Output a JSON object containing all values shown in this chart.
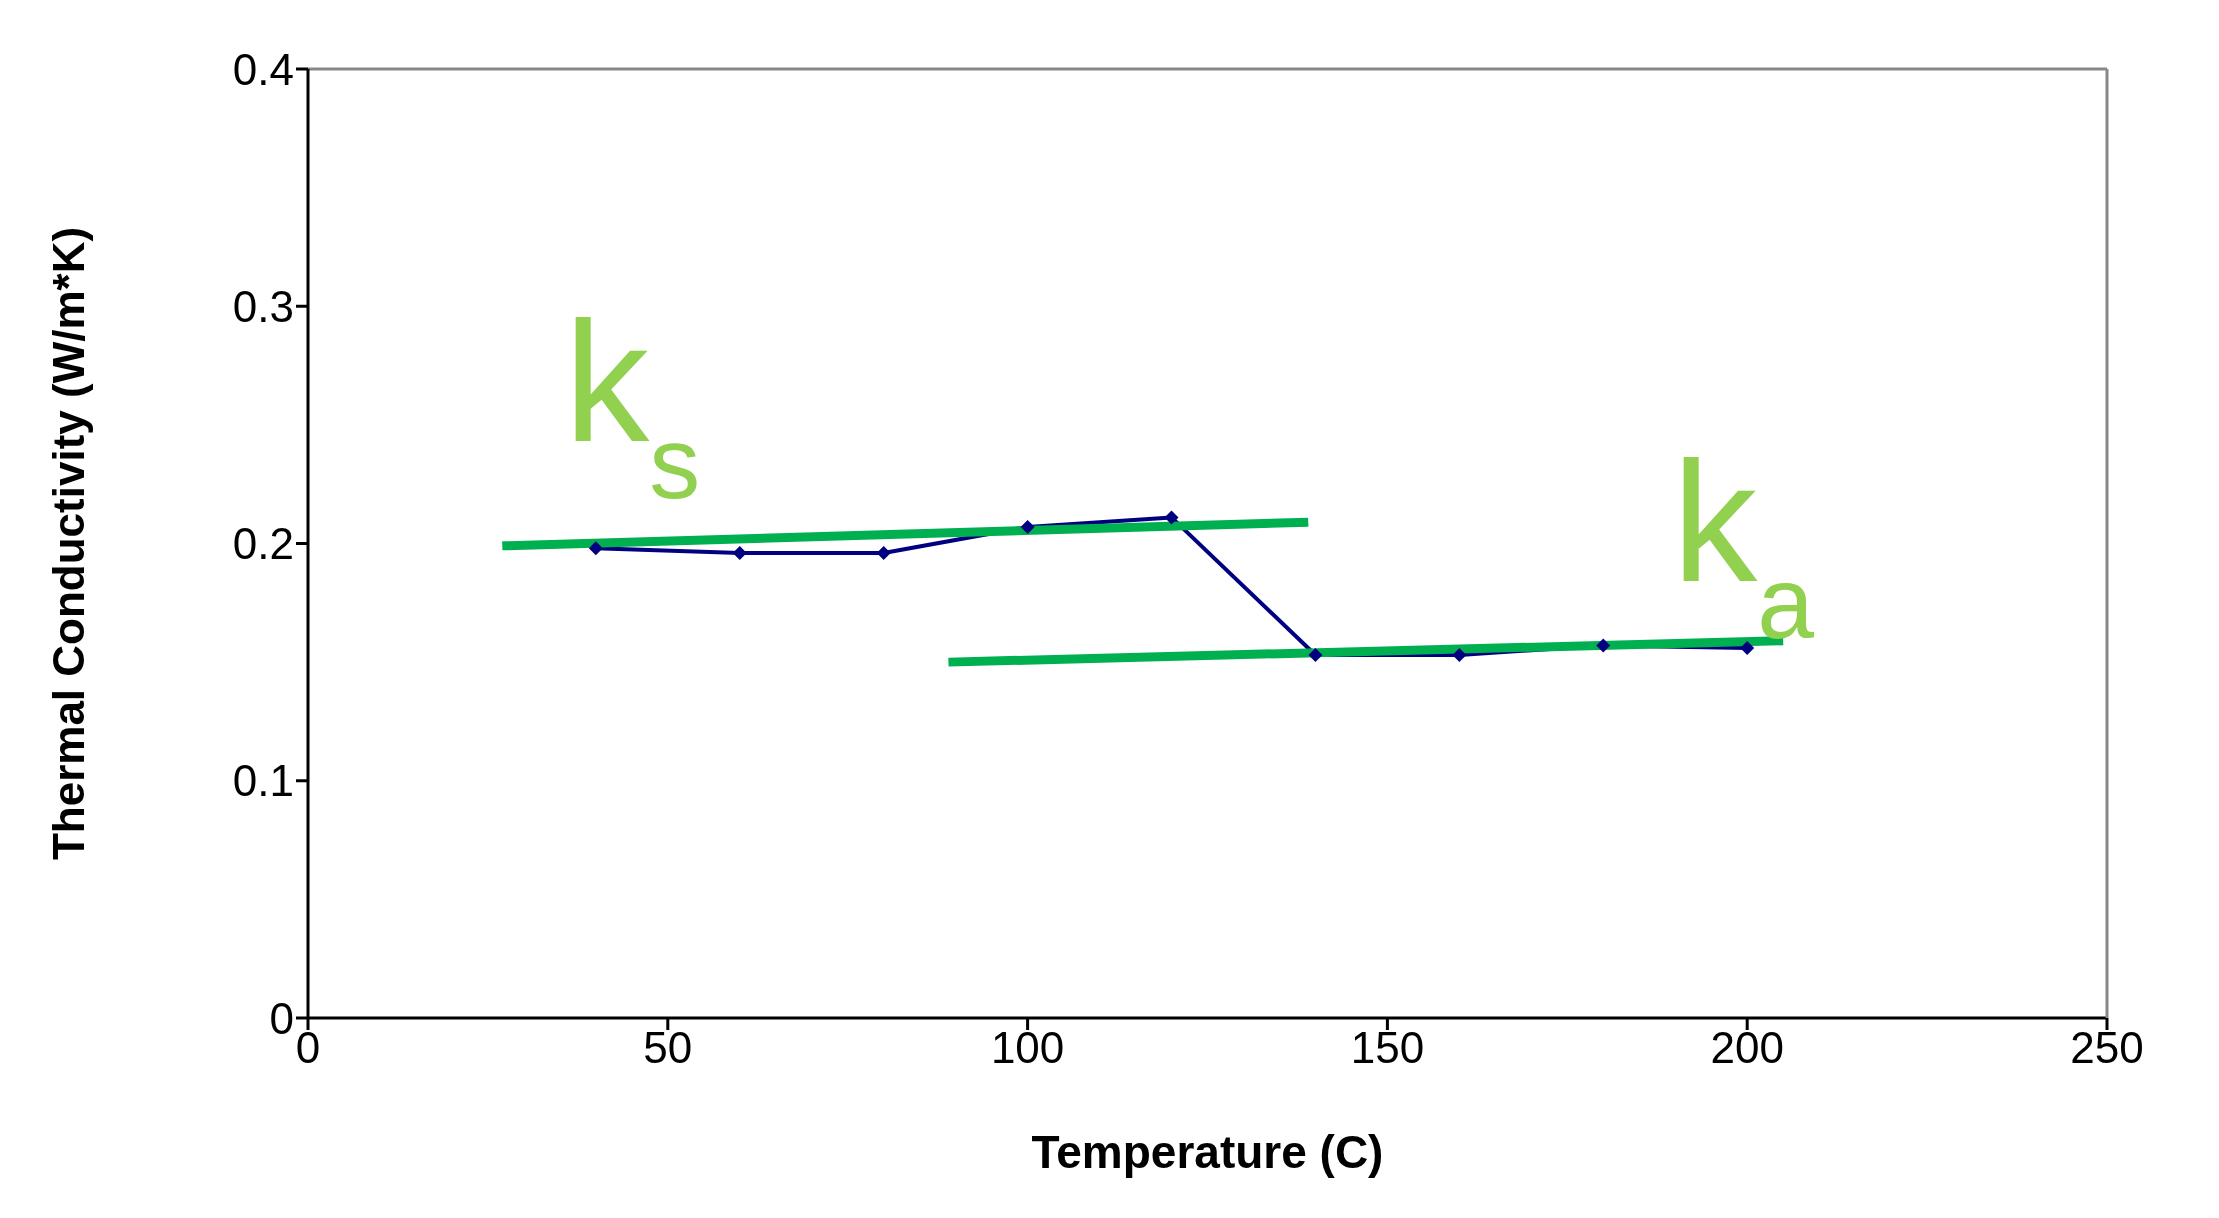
{
  "chart_data": {
    "type": "line",
    "xlabel": "Temperature (C)",
    "ylabel": "Thermal Conductivity (W/m*K)",
    "xlim": [
      0,
      250
    ],
    "xticks": [
      0,
      50,
      100,
      150,
      200,
      250
    ],
    "ylim": [
      0,
      0.4
    ],
    "yticks": [
      0,
      0.1,
      0.2,
      0.3,
      0.4
    ],
    "grid": false,
    "legend": false,
    "series": [
      {
        "color": "#000080",
        "marker": "diamond",
        "x": [
          40,
          60,
          80,
          100,
          120,
          140,
          160,
          180,
          200
        ],
        "values": [
          0.198,
          0.196,
          0.196,
          0.207,
          0.211,
          0.153,
          0.153,
          0.157,
          0.156
        ]
      },
      {
        "name": "k$_{s}$",
        "color": "#00b050",
        "marker": "none",
        "x": [
          27,
          139
        ],
        "values": [
          0.199,
          0.209
        ]
      },
      {
        "name": "k$_{a}$",
        "color": "#00b050",
        "marker": "none",
        "x": [
          89,
          205
        ],
        "values": [
          0.15,
          0.159
        ]
      }
    ]
  }
}
